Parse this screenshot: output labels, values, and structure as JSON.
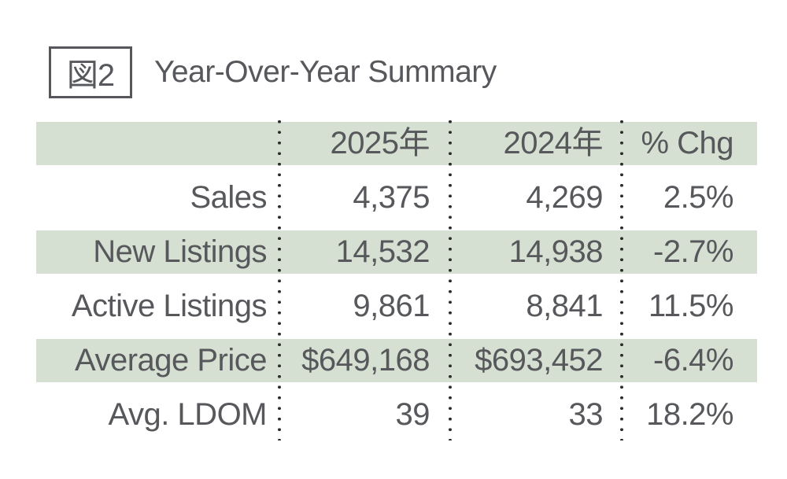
{
  "figure": {
    "tag": "図2",
    "title": "Year-Over-Year Summary"
  },
  "chart_data": {
    "type": "table",
    "title": "Year-Over-Year Summary",
    "figure_tag": "図2",
    "columns": [
      "",
      "2025年",
      "2024年",
      "% Chg"
    ],
    "rows": [
      [
        "Sales",
        "4,375",
        "4,269",
        "2.5%"
      ],
      [
        "New Listings",
        "14,532",
        "14,938",
        "-2.7%"
      ],
      [
        "Active Listings",
        "9,861",
        "8,841",
        "11.5%"
      ],
      [
        "Average Price",
        "$649,168",
        "$693,452",
        "-6.4%"
      ],
      [
        "Avg. LDOM",
        "39",
        "33",
        "18.2%"
      ]
    ],
    "layout": {
      "striped_row_indices": [
        1,
        3
      ],
      "header_filled": true,
      "column_separators": "dotted",
      "value_alignment": "right"
    },
    "colors": {
      "header_bg": "#d6e0d2",
      "stripe_bg": "#d6e0d2",
      "text": "#57585b",
      "dot": "#2b2b2b",
      "background": "#ffffff"
    }
  }
}
